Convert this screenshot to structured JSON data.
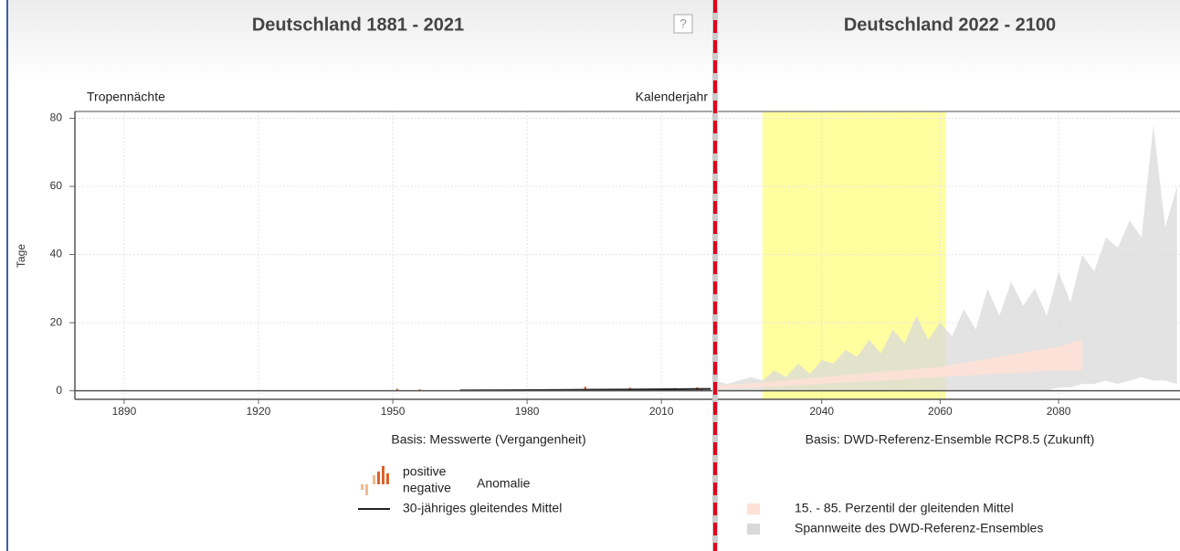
{
  "chart_data": [
    {
      "type": "bar",
      "title": "Deutschland 1881 - 2021",
      "help": "?",
      "y_label": "Tage",
      "top_left_label": "Tropennächte",
      "top_right_label": "Kalenderjahr",
      "caption": "Basis: Messwerte (Vergangenheit)",
      "xlim": [
        1879,
        2022
      ],
      "xticks": [
        1890,
        1920,
        1950,
        1980,
        2010
      ],
      "ylim": [
        -2.5,
        82
      ],
      "yticks": [
        0,
        20,
        40,
        60,
        80
      ],
      "grid": true,
      "x": [
        1951,
        1956,
        1976,
        1983,
        1985,
        1988,
        1991,
        1993,
        1999,
        2003,
        2006,
        2013,
        2015,
        2018,
        2019
      ],
      "values": [
        0.6,
        0.4,
        0.3,
        0.4,
        0.5,
        0.3,
        0.4,
        1.2,
        0.6,
        0.9,
        0.5,
        0.8,
        0.6,
        1.0,
        0.7
      ],
      "colors": {
        "positive": "#d9622b",
        "negative": "#f5b98f"
      },
      "moving_average": {
        "name": "30-jähriges gleitendes Mittel",
        "color": "#222222",
        "x": [
          1965,
          1975,
          1985,
          1995,
          2005,
          2015,
          2021
        ],
        "values": [
          0.1,
          0.15,
          0.2,
          0.3,
          0.4,
          0.5,
          0.55
        ]
      },
      "legend": {
        "positive": "positive",
        "negative": "negative",
        "label": "Anomalie"
      }
    },
    {
      "type": "area",
      "title": "Deutschland 2022 - 2100",
      "caption": "Basis: DWD-Referenz-Ensemble RCP8.5 (Zukunft)",
      "xlim": [
        2022,
        2100.5
      ],
      "xticks": [
        2040,
        2060,
        2080
      ],
      "highlight": {
        "range": [
          2030,
          2061
        ],
        "color": "#ffffa0"
      },
      "series": [
        {
          "name": "15. - 85. Perzentil der gleitenden Mittel",
          "color": "#fde0d6",
          "x": [
            2022,
            2030,
            2040,
            2050,
            2060,
            2070,
            2080,
            2084
          ],
          "lower": [
            0.5,
            1,
            2,
            3,
            4,
            5,
            6,
            6
          ],
          "upper": [
            1.5,
            2.5,
            4,
            5.5,
            7,
            10,
            13,
            15
          ]
        },
        {
          "name": "Spannweite des DWD-Referenz-Ensembles",
          "color": "#d9d9d9",
          "x": [
            2022,
            2024,
            2026,
            2028,
            2030,
            2032,
            2034,
            2036,
            2038,
            2040,
            2042,
            2044,
            2046,
            2048,
            2050,
            2052,
            2054,
            2056,
            2058,
            2060,
            2062,
            2064,
            2066,
            2068,
            2070,
            2072,
            2074,
            2076,
            2078,
            2080,
            2082,
            2084,
            2086,
            2088,
            2090,
            2092,
            2094,
            2096,
            2098,
            2100
          ],
          "lower": [
            0,
            0,
            0,
            0,
            0,
            0,
            0,
            0,
            0,
            0,
            0,
            0,
            0,
            0,
            0,
            0,
            0,
            0,
            0,
            0,
            0,
            0,
            0,
            0,
            0,
            0,
            0,
            0,
            0,
            1,
            1,
            2,
            2,
            3,
            2,
            3,
            4,
            3,
            3,
            2
          ],
          "upper": [
            3,
            2,
            3,
            4,
            3,
            6,
            4,
            8,
            5,
            9,
            8,
            12,
            10,
            15,
            11,
            18,
            14,
            22,
            15,
            20,
            16,
            24,
            18,
            30,
            22,
            32,
            25,
            30,
            22,
            35,
            26,
            40,
            35,
            45,
            42,
            50,
            45,
            78,
            48,
            60
          ]
        }
      ]
    }
  ]
}
